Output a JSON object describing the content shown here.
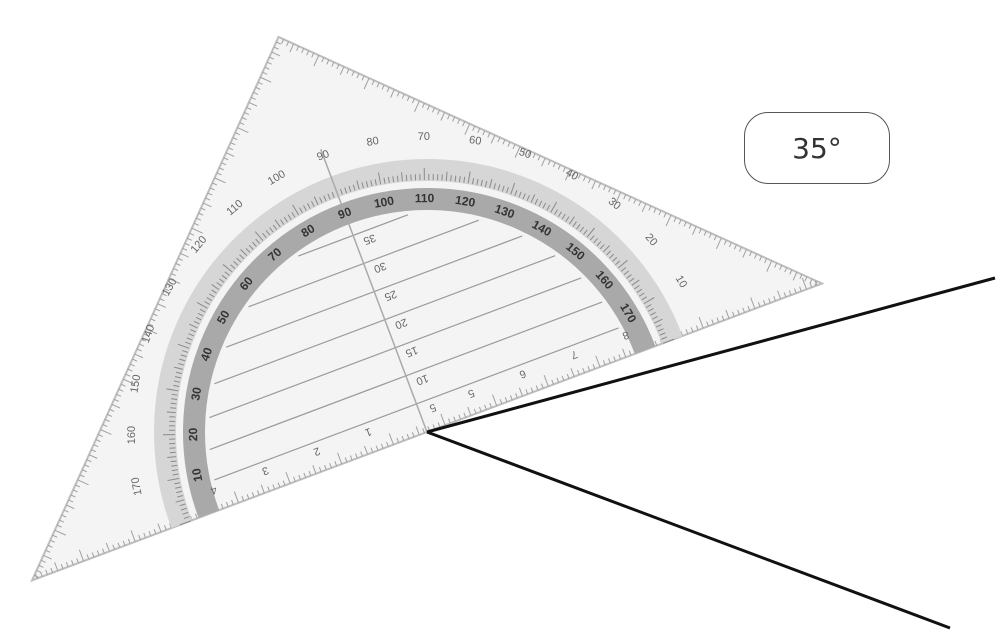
{
  "angle_label": "35°",
  "protractor": {
    "outer_scale": [
      "10",
      "20",
      "30",
      "40",
      "50",
      "60",
      "70",
      "80",
      "90",
      "100",
      "110",
      "120",
      "130",
      "140",
      "150",
      "160",
      "170"
    ],
    "inner_scale": [
      "10",
      "20",
      "30",
      "40",
      "50",
      "60",
      "70",
      "80",
      "90",
      "100",
      "110",
      "120",
      "130",
      "140",
      "150",
      "160",
      "170"
    ],
    "center_lines": [
      "5",
      "10",
      "15",
      "20",
      "25",
      "30",
      "35"
    ],
    "edge_scale": [
      "1",
      "2",
      "3",
      "4",
      "5",
      "6",
      "7",
      "8"
    ]
  },
  "colors": {
    "ruler_fill": "#f4f4f4",
    "ruler_edge": "#bdbdbd",
    "scale_band": "#a9a9a9",
    "tick": "#8a8a8a",
    "angle_ray": "#111111"
  }
}
